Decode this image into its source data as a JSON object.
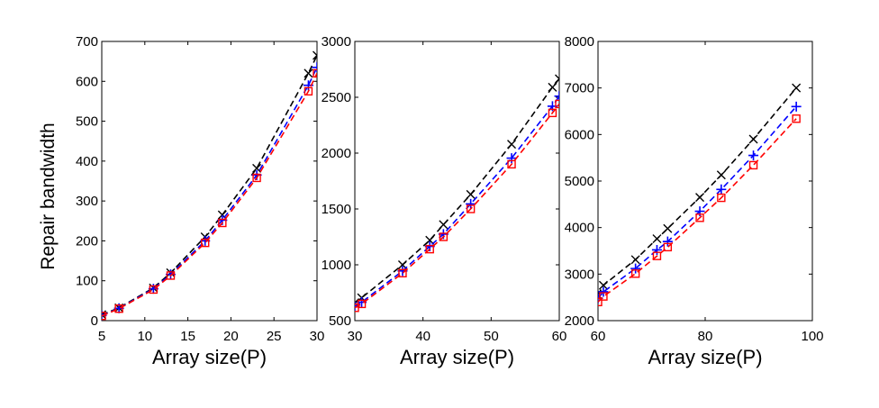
{
  "figure": {
    "ylabel": "Repair bandwidth"
  },
  "chart_data": [
    {
      "type": "line",
      "xlabel": "Array size(P)",
      "ylabel": "Repair bandwidth",
      "xlim": [
        5,
        30
      ],
      "ylim": [
        0,
        700
      ],
      "xticks": [
        5,
        10,
        15,
        20,
        25,
        30
      ],
      "yticks": [
        0,
        100,
        200,
        300,
        400,
        500,
        600,
        700
      ],
      "grid": false,
      "series": [
        {
          "color": "#000000",
          "marker": "x",
          "x": [
            5,
            7,
            11,
            13,
            17,
            19,
            23,
            29,
            30
          ],
          "y": [
            15,
            32,
            82,
            120,
            210,
            265,
            382,
            620,
            665
          ]
        },
        {
          "color": "#0000ff",
          "marker": "+",
          "x": [
            5,
            7,
            11,
            13,
            17,
            19,
            23,
            29,
            30
          ],
          "y": [
            13,
            31,
            80,
            116,
            200,
            252,
            365,
            590,
            635
          ]
        },
        {
          "color": "#ff0000",
          "marker": "square",
          "x": [
            5,
            7,
            11,
            13,
            17,
            19,
            23,
            29,
            30
          ],
          "y": [
            12,
            30,
            78,
            113,
            195,
            245,
            358,
            575,
            620
          ]
        }
      ]
    },
    {
      "type": "line",
      "xlabel": "Array size(P)",
      "ylabel": "",
      "xlim": [
        30,
        60
      ],
      "ylim": [
        500,
        3000
      ],
      "xticks": [
        30,
        40,
        50,
        60
      ],
      "yticks": [
        500,
        1000,
        1500,
        2000,
        2500,
        3000
      ],
      "grid": false,
      "series": [
        {
          "color": "#000000",
          "marker": "x",
          "x": [
            30,
            31,
            37,
            41,
            43,
            47,
            53,
            59,
            60
          ],
          "y": [
            660,
            705,
            1000,
            1220,
            1360,
            1630,
            2080,
            2590,
            2665
          ]
        },
        {
          "color": "#0000ff",
          "marker": "+",
          "x": [
            30,
            31,
            37,
            41,
            43,
            47,
            53,
            59,
            60
          ],
          "y": [
            625,
            665,
            945,
            1165,
            1275,
            1545,
            1955,
            2420,
            2510
          ]
        },
        {
          "color": "#ff0000",
          "marker": "square",
          "x": [
            30,
            31,
            37,
            41,
            43,
            47,
            53,
            59,
            60
          ],
          "y": [
            615,
            650,
            925,
            1140,
            1250,
            1500,
            1900,
            2360,
            2440
          ]
        }
      ]
    },
    {
      "type": "line",
      "xlabel": "Array size(P)",
      "ylabel": "",
      "xlim": [
        60,
        100
      ],
      "ylim": [
        2000,
        8000
      ],
      "xticks": [
        60,
        80,
        100
      ],
      "yticks": [
        2000,
        3000,
        4000,
        5000,
        6000,
        7000,
        8000
      ],
      "grid": false,
      "series": [
        {
          "color": "#000000",
          "marker": "x",
          "x": [
            60,
            61,
            67,
            71,
            73,
            79,
            83,
            89,
            97
          ],
          "y": [
            2550,
            2760,
            3310,
            3760,
            3980,
            4650,
            5130,
            5900,
            7000
          ]
        },
        {
          "color": "#0000ff",
          "marker": "+",
          "x": [
            60,
            61,
            67,
            71,
            73,
            79,
            83,
            89,
            97
          ],
          "y": [
            2480,
            2620,
            3120,
            3520,
            3700,
            4350,
            4820,
            5550,
            6600
          ]
        },
        {
          "color": "#ff0000",
          "marker": "square",
          "x": [
            60,
            61,
            67,
            71,
            73,
            79,
            83,
            89,
            97
          ],
          "y": [
            2400,
            2520,
            3010,
            3390,
            3580,
            4210,
            4640,
            5340,
            6340
          ]
        }
      ]
    }
  ]
}
